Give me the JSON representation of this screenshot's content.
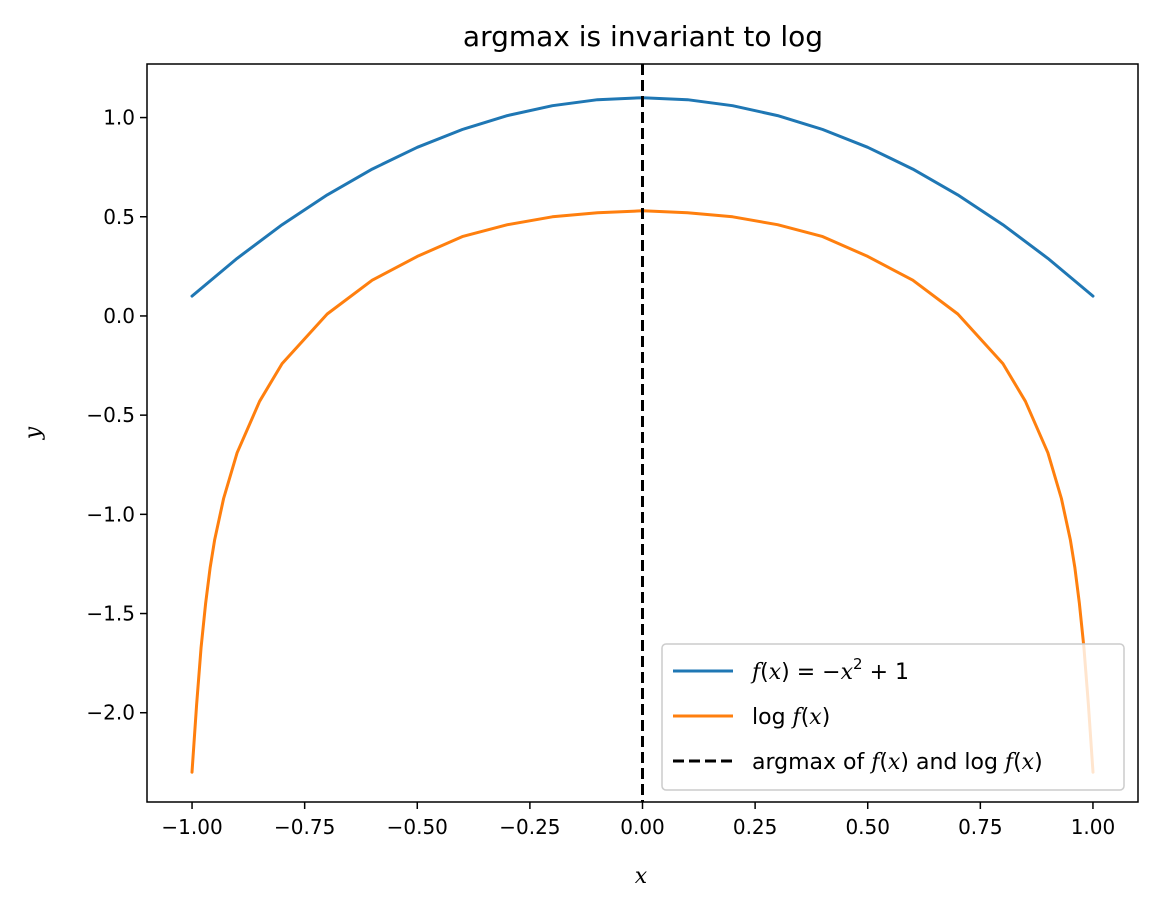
{
  "chart_data": {
    "type": "line",
    "title": "argmax is invariant to log",
    "xlabel": "x",
    "ylabel": "y",
    "xlim": [
      -1.1,
      1.1
    ],
    "ylim": [
      -2.45,
      1.27
    ],
    "x_ticks": [
      -1.0,
      -0.75,
      -0.5,
      -0.25,
      0.0,
      0.25,
      0.5,
      0.75,
      1.0
    ],
    "x_tick_labels": [
      "−1.00",
      "−0.75",
      "−0.50",
      "−0.25",
      "0.00",
      "0.25",
      "0.50",
      "0.75",
      "1.00"
    ],
    "y_ticks": [
      -2.0,
      -1.5,
      -1.0,
      -0.5,
      0.0,
      0.5,
      1.0
    ],
    "y_tick_labels": [
      "−2.0",
      "−1.5",
      "−1.0",
      "−0.5",
      "0.0",
      "0.5",
      "1.0"
    ],
    "grid": false,
    "legend_position": "lower-right",
    "series": [
      {
        "name": "f(x) = −x² + 1",
        "color": "#1f77b4",
        "style": "solid",
        "x": [
          -1.0,
          -0.9,
          -0.8,
          -0.7,
          -0.6,
          -0.5,
          -0.4,
          -0.3,
          -0.2,
          -0.1,
          0.0,
          0.1,
          0.2,
          0.3,
          0.4,
          0.5,
          0.6,
          0.7,
          0.8,
          0.9,
          1.0
        ],
        "y": [
          0.1,
          0.29,
          0.46,
          0.61,
          0.74,
          0.85,
          0.94,
          1.01,
          1.06,
          1.09,
          1.1,
          1.09,
          1.06,
          1.01,
          0.94,
          0.85,
          0.74,
          0.61,
          0.46,
          0.29,
          0.1
        ]
      },
      {
        "name": "log f(x)",
        "color": "#ff7f0e",
        "style": "solid",
        "x": [
          -1.0,
          -0.99,
          -0.98,
          -0.97,
          -0.96,
          -0.95,
          -0.93,
          -0.9,
          -0.85,
          -0.8,
          -0.7,
          -0.6,
          -0.5,
          -0.4,
          -0.3,
          -0.2,
          -0.1,
          0.0,
          0.1,
          0.2,
          0.3,
          0.4,
          0.5,
          0.6,
          0.7,
          0.8,
          0.85,
          0.9,
          0.93,
          0.95,
          0.96,
          0.97,
          0.98,
          0.99,
          1.0
        ],
        "y": [
          -2.3,
          -1.96,
          -1.67,
          -1.45,
          -1.27,
          -1.13,
          -0.92,
          -0.69,
          -0.43,
          -0.24,
          0.01,
          0.18,
          0.3,
          0.4,
          0.46,
          0.5,
          0.52,
          0.53,
          0.52,
          0.5,
          0.46,
          0.4,
          0.3,
          0.18,
          0.01,
          -0.24,
          -0.43,
          -0.69,
          -0.92,
          -1.13,
          -1.27,
          -1.45,
          -1.67,
          -1.96,
          -2.3
        ]
      }
    ],
    "vline": {
      "name": "argmax of f(x) and log f(x)",
      "x": 0.0,
      "color": "#000000",
      "style": "dashed"
    }
  },
  "legend": {
    "entry1": {
      "pre": "f",
      "mid": "(",
      "var": "x",
      "post": ") = −",
      "var2": "x",
      "sup": "2",
      "tail": " + 1"
    },
    "entry2": {
      "pre": "log ",
      "f": "f",
      "mid": "(",
      "var": "x",
      "post": ")"
    },
    "entry3": {
      "a": "argmax of ",
      "f1": "f",
      "b": "(",
      "x1": "x",
      "c": ") and log ",
      "f2": "f",
      "d": "(",
      "x2": "x",
      "e": ")"
    }
  }
}
